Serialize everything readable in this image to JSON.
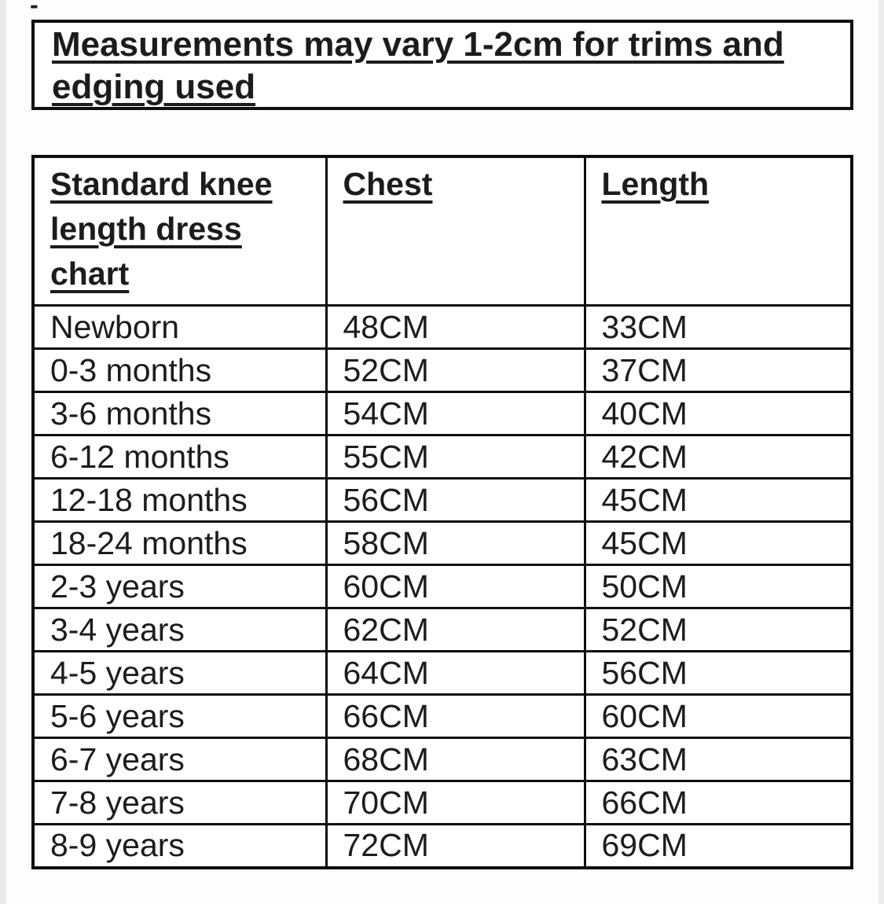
{
  "page": {
    "stray_dash": "-"
  },
  "notice": {
    "text": "Measurements may vary 1-2cm for trims and edging used"
  },
  "size_chart": {
    "columns": [
      "Standard knee length dress chart",
      "Chest",
      "Length"
    ],
    "rows": [
      {
        "size": "Newborn",
        "chest": "48CM",
        "length": "33CM"
      },
      {
        "size": "0-3 months",
        "chest": "52CM",
        "length": "37CM"
      },
      {
        "size": "3-6 months",
        "chest": "54CM",
        "length": "40CM"
      },
      {
        "size": "6-12 months",
        "chest": "55CM",
        "length": "42CM"
      },
      {
        "size": "12-18 months",
        "chest": "56CM",
        "length": "45CM"
      },
      {
        "size": "18-24 months",
        "chest": "58CM",
        "length": "45CM"
      },
      {
        "size": "2-3 years",
        "chest": "60CM",
        "length": "50CM"
      },
      {
        "size": "3-4 years",
        "chest": "62CM",
        "length": "52CM"
      },
      {
        "size": "4-5 years",
        "chest": "64CM",
        "length": "56CM"
      },
      {
        "size": "5-6 years",
        "chest": "66CM",
        "length": "60CM"
      },
      {
        "size": "6-7 years",
        "chest": "68CM",
        "length": "63CM"
      },
      {
        "size": "7-8 years",
        "chest": "70CM",
        "length": "66CM"
      },
      {
        "size": "8-9 years",
        "chest": "72CM",
        "length": "69CM"
      }
    ]
  },
  "colors": {
    "text": "#1c1c1c",
    "border": "#0e0e0e",
    "background": "#ffffff",
    "page_edge": "#ebebeb"
  }
}
